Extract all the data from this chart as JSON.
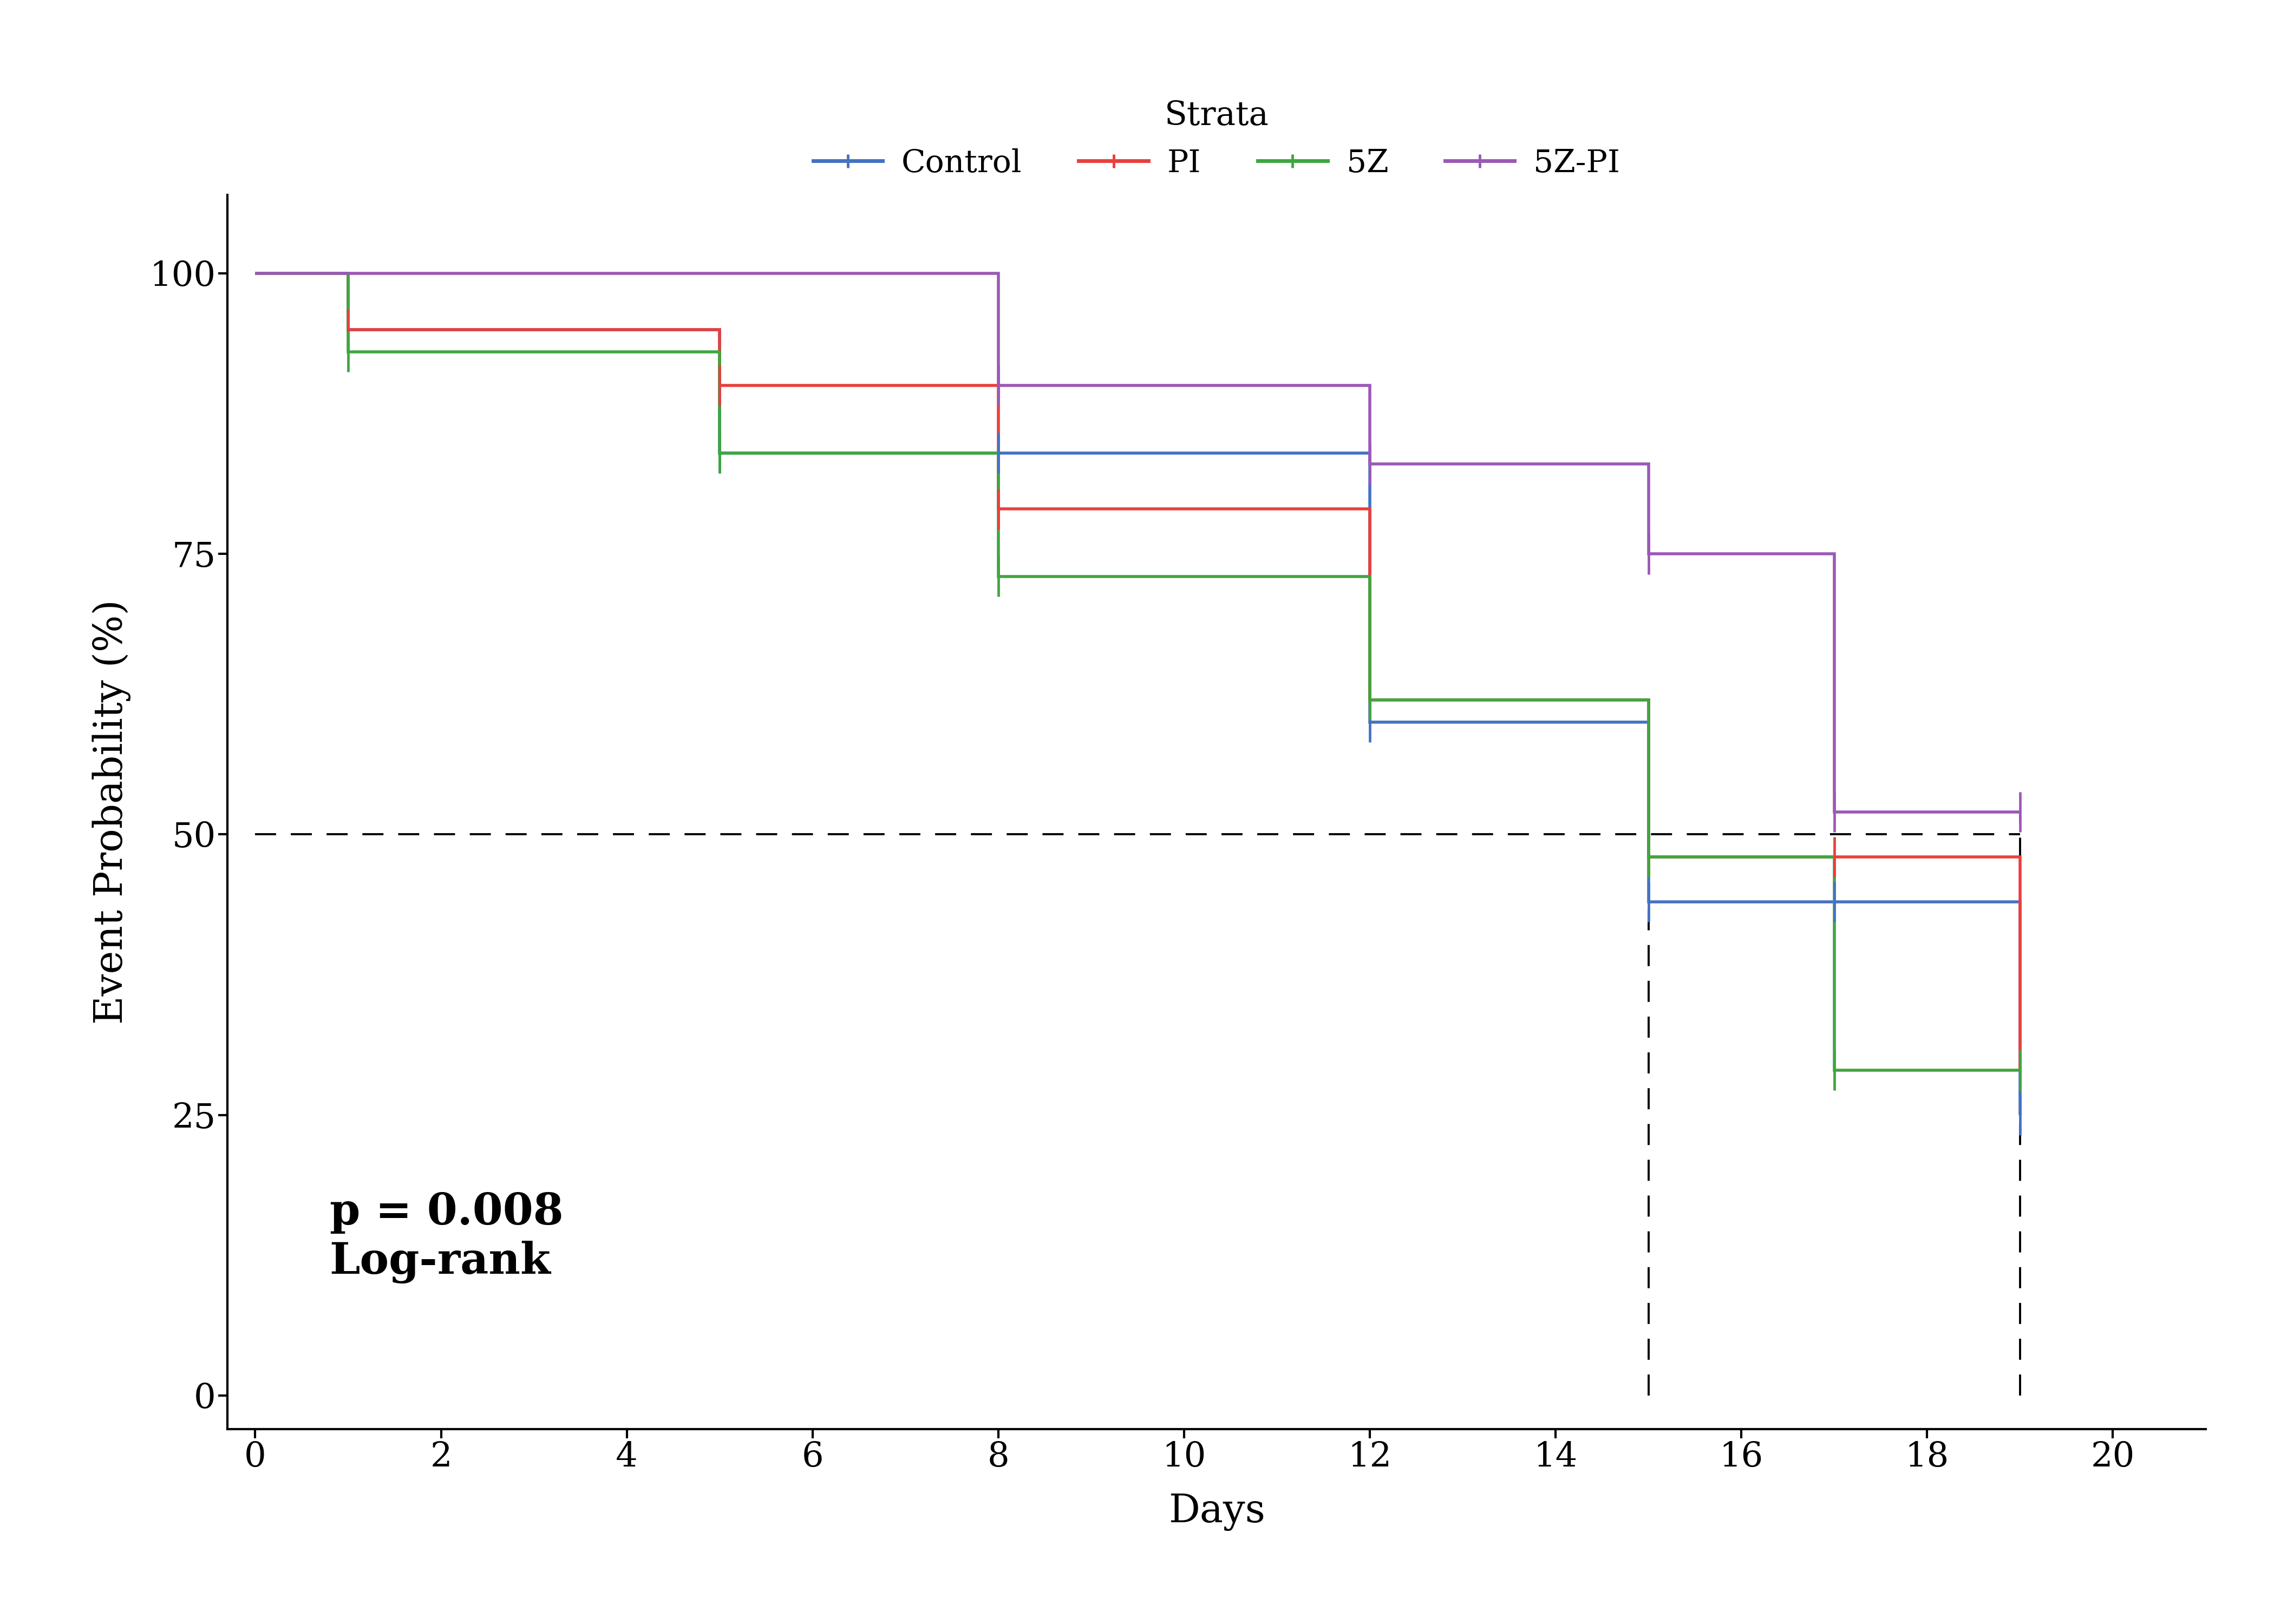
{
  "xlabel": "Days",
  "ylabel": "Event Probability (%)",
  "legend_title": "Strata",
  "annotation_text": "p = 0.008\nLog-rank",
  "xlim": [
    -0.3,
    21
  ],
  "ylim": [
    -3,
    107
  ],
  "xticks": [
    0,
    2,
    4,
    6,
    8,
    10,
    12,
    14,
    16,
    18,
    20
  ],
  "yticks": [
    0,
    25,
    50,
    75,
    100
  ],
  "background_color": "#ffffff",
  "series": {
    "Control": {
      "color": "#4472c4",
      "times": [
        0,
        1,
        1,
        5,
        5,
        8,
        12,
        12,
        15,
        15,
        17,
        19,
        19
      ],
      "surv": [
        100,
        100,
        95,
        95,
        84,
        84,
        84,
        60,
        60,
        44,
        44,
        44,
        25
      ],
      "censor_times": [
        8
      ],
      "censor_surv": [
        84
      ]
    },
    "PI": {
      "color": "#e8403e",
      "times": [
        0,
        1,
        1,
        5,
        5,
        8,
        8,
        12,
        12,
        15,
        15,
        17,
        19,
        19
      ],
      "surv": [
        100,
        100,
        95,
        95,
        90,
        90,
        79,
        79,
        62,
        62,
        48,
        48,
        48,
        29
      ],
      "censor_times": [],
      "censor_surv": []
    },
    "5Z": {
      "color": "#3fa63f",
      "times": [
        0,
        1,
        1,
        5,
        5,
        8,
        8,
        12,
        12,
        15,
        15,
        17,
        17,
        19
      ],
      "surv": [
        100,
        100,
        93,
        93,
        84,
        84,
        73,
        73,
        62,
        62,
        48,
        48,
        29,
        29
      ],
      "censor_times": [],
      "censor_surv": []
    },
    "5Z-PI": {
      "color": "#9b59b6",
      "times": [
        0,
        8,
        8,
        12,
        12,
        15,
        15,
        17,
        17,
        19,
        19
      ],
      "surv": [
        100,
        100,
        90,
        90,
        83,
        83,
        75,
        75,
        52,
        52,
        52
      ],
      "censor_times": [],
      "censor_surv": []
    }
  },
  "censor_tick_color_Control": "#4472c4",
  "censor_tick_color_PI": "#e8403e",
  "censor_tick_color_5Z": "#3fa63f",
  "censor_tick_color_5ZPI": "#9b59b6",
  "all_censor_data": {
    "Control": {
      "times": [
        8
      ],
      "surv": [
        84
      ]
    },
    "PI": {
      "times": [],
      "surv": []
    },
    "5Z": {
      "times": [],
      "surv": []
    },
    "5Z-PI": {
      "times": [],
      "surv": []
    }
  },
  "tick_marks": {
    "Control": [
      [
        1,
        95
      ],
      [
        5,
        84
      ],
      [
        8,
        84
      ],
      [
        12,
        60
      ],
      [
        15,
        44
      ],
      [
        17,
        44
      ],
      [
        19,
        25
      ]
    ],
    "PI": [
      [
        1,
        95
      ],
      [
        5,
        90
      ],
      [
        8,
        79
      ],
      [
        12,
        62
      ],
      [
        15,
        48
      ],
      [
        17,
        48
      ],
      [
        19,
        29
      ]
    ],
    "5Z": [
      [
        1,
        93
      ],
      [
        5,
        84
      ],
      [
        8,
        73
      ],
      [
        12,
        62
      ],
      [
        15,
        48
      ],
      [
        17,
        29
      ],
      [
        19,
        29
      ]
    ],
    "5Z-PI": [
      [
        8,
        90
      ],
      [
        12,
        83
      ],
      [
        15,
        75
      ],
      [
        17,
        52
      ],
      [
        19,
        52
      ]
    ]
  }
}
